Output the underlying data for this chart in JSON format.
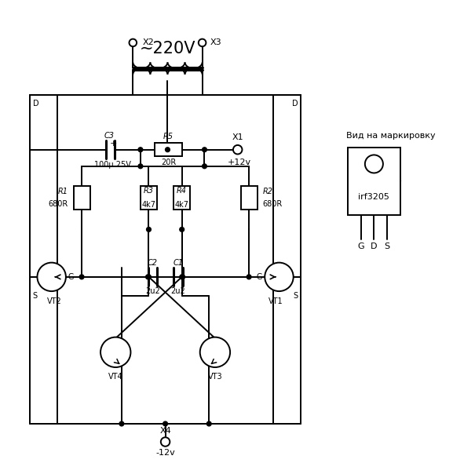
{
  "bg_color": "#ffffff",
  "lc": "#000000",
  "lw": 1.4,
  "figsize": [
    5.77,
    6.04
  ],
  "dpi": 100,
  "label_220v": "~220V",
  "label_x1": "X1",
  "label_x2": "X2",
  "label_x3": "X3",
  "label_x4": "X4",
  "label_plus12v": "+12v",
  "label_minus12v": "-12v",
  "label_c3": "C3",
  "label_c3_val": "100μ 25V",
  "label_r5": "R5",
  "label_r5_val": "20R",
  "label_r1": "R1",
  "label_r1_val": "680R",
  "label_r2": "R2",
  "label_r2_val": "680R",
  "label_r3": "R3",
  "label_r3_val": "4k7",
  "label_r4": "R4",
  "label_r4_val": "4k7",
  "label_c1": "C1",
  "label_c1_val": "2u2",
  "label_c2": "C2",
  "label_c2_val": "2u2",
  "label_vt1": "VT1",
  "label_vt2": "VT2",
  "label_vt3": "VT3",
  "label_vt4": "VT4",
  "label_irf": "irf3205",
  "label_vid": "Вид на маркировку",
  "label_gds": [
    "G",
    "D",
    "S"
  ],
  "label_d": "D",
  "label_s": "S",
  "label_g": "G"
}
